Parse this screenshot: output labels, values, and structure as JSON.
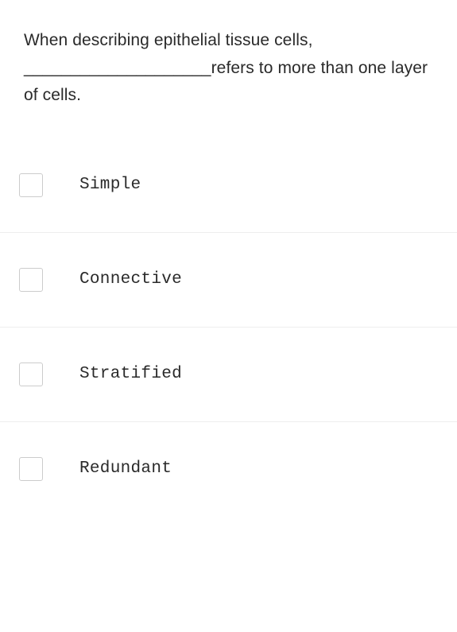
{
  "question": {
    "text": "When describing epithelial tissue cells, ____________________refers to more than one layer of cells."
  },
  "options": [
    {
      "label": "Simple",
      "checked": false
    },
    {
      "label": "Connective",
      "checked": false
    },
    {
      "label": "Stratified",
      "checked": false
    },
    {
      "label": "Redundant",
      "checked": false
    }
  ],
  "styles": {
    "background_color": "#ffffff",
    "text_color": "#2a2a2a",
    "divider_color": "#eeeeee",
    "checkbox_border_color": "#cccccc",
    "question_fontsize": 21,
    "option_fontsize": 21,
    "option_font_family": "monospace"
  }
}
